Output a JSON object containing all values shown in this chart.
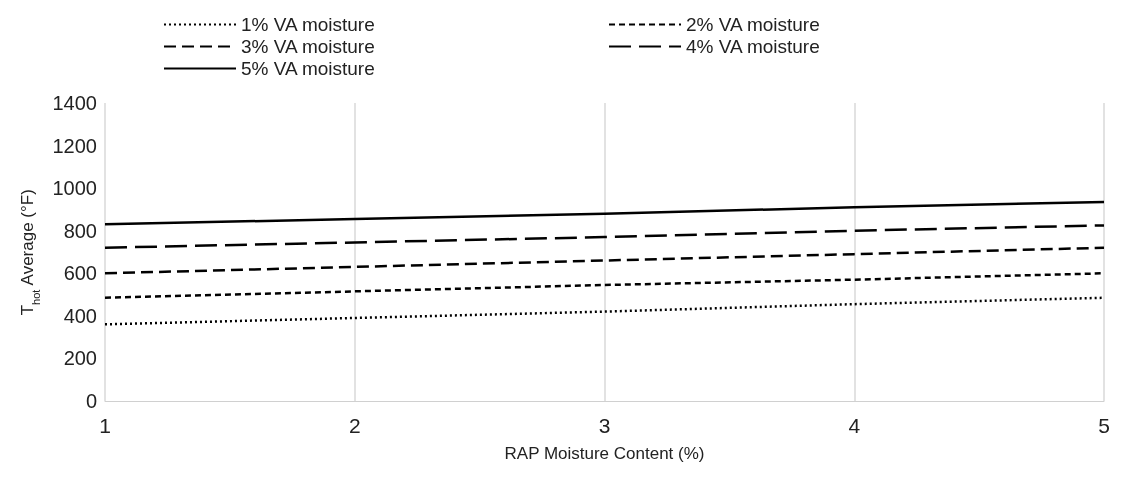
{
  "chart_data": {
    "type": "line",
    "xlabel": "RAP Moisture Content (%)",
    "ylabel": "T$_{hot}$ Average (°F)",
    "xlim": [
      1,
      5
    ],
    "xticks": [
      1,
      2,
      3,
      4,
      5
    ],
    "ylim": [
      0,
      1400
    ],
    "yticks": [
      0,
      200,
      400,
      600,
      800,
      1000,
      1200,
      1400
    ],
    "grid": "x",
    "legend": "top",
    "marker": "none",
    "series": [
      {
        "name": "1% VA moisture",
        "color": "#000000",
        "line_style": "dotted",
        "x": [
          1,
          2,
          3,
          4,
          5
        ],
        "values": [
          360,
          390,
          420,
          455,
          485
        ]
      },
      {
        "name": "2% VA moisture",
        "color": "#000000",
        "line_style": "dashed",
        "x": [
          1,
          2,
          3,
          4,
          5
        ],
        "values": [
          485,
          515,
          545,
          570,
          600
        ]
      },
      {
        "name": "3% VA moisture",
        "color": "#000000",
        "line_style": "dashed",
        "x": [
          1,
          2,
          3,
          4,
          5
        ],
        "values": [
          600,
          630,
          660,
          690,
          720
        ]
      },
      {
        "name": "4% VA moisture",
        "color": "#000000",
        "line_style": "dashed",
        "x": [
          1,
          2,
          3,
          4,
          5
        ],
        "values": [
          720,
          745,
          770,
          800,
          825
        ]
      },
      {
        "name": "5% VA moisture",
        "color": "#000000",
        "line_style": "solid",
        "x": [
          1,
          2,
          3,
          4,
          5
        ],
        "values": [
          830,
          855,
          880,
          910,
          935
        ]
      }
    ]
  }
}
